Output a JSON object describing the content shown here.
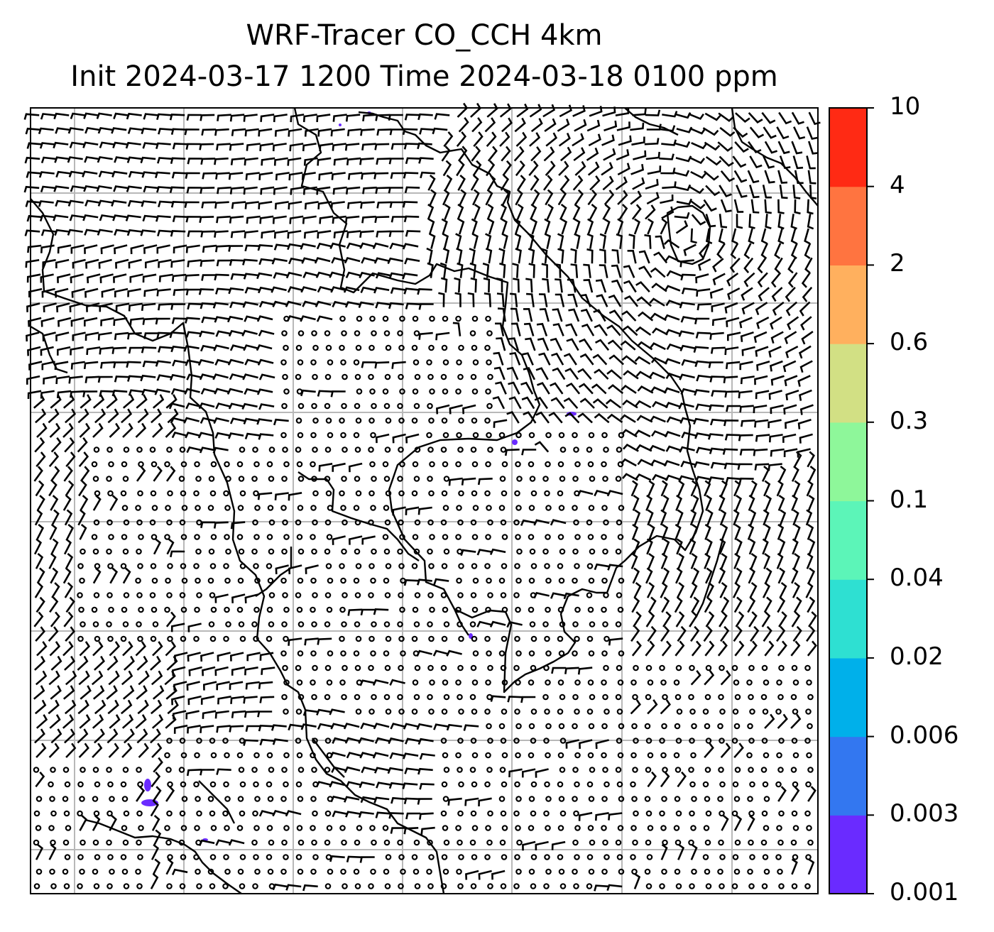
{
  "title": {
    "line1": "WRF-Tracer CO_CCH 4km",
    "line2": "Init 2024-03-17 1200 Time 2024-03-18 0100 ppm"
  },
  "colorbar": {
    "levels": [
      "0.001",
      "0.003",
      "0.006",
      "0.02",
      "0.04",
      "0.1",
      "0.3",
      "0.6",
      "2",
      "4",
      "10"
    ],
    "colors": [
      "#6a2bff",
      "#3377f0",
      "#00b0ea",
      "#2ee0d2",
      "#5cf5b8",
      "#8ef79a",
      "#d2e084",
      "#ffb05e",
      "#ff7440",
      "#ff2a14"
    ]
  },
  "map": {
    "field": "CO_CCH tracer concentration with wind barbs",
    "gridlines": true,
    "barb_color": "#000000",
    "coastline_color": "#000000",
    "plume_color": "#6a2bff"
  }
}
